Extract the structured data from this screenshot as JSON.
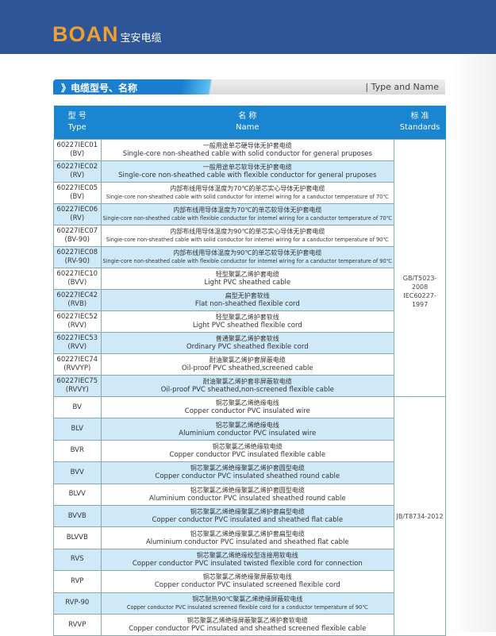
{
  "header": {
    "logo_latin": "BOAN",
    "logo_cn": "宝安电缆",
    "brand_color": "#2d5597"
  },
  "section": {
    "title_cn": "》电缆型号、名称",
    "title_en": "| Type and Name"
  },
  "table": {
    "headers": [
      {
        "cn": "型 号",
        "en": "Type"
      },
      {
        "cn": "名 称",
        "en": "Name"
      },
      {
        "cn": "标 准",
        "en": "Standards"
      }
    ],
    "groups": [
      {
        "standard": [
          "GB/T5023-2008",
          "IEC60227-1997"
        ],
        "rows": [
          {
            "type": [
              "60227IEC01",
              "(BV)"
            ],
            "cn": "一般用途单芯硬导体无护套电缆",
            "en": "Single-core non-sheathed cable with solid conductor for general pruposes"
          },
          {
            "type": [
              "60227IEC02",
              "(RV)"
            ],
            "cn": "一般用途单芯软导体无护套电缆",
            "en": "Single-core non-sheathed cable with flexible  conductor for general pruposes"
          },
          {
            "type": [
              "60227IEC05",
              "(BV)"
            ],
            "cn": "内部布线用导体温度为70℃的单芯实心导体无护套电缆",
            "en": "Singie-core non-sheathed cable with solid conductor for intemel wiring for a canductor temperature of 70℃"
          },
          {
            "type": [
              "60227IEC06",
              "(RV)"
            ],
            "cn": "内部布线用导体温度为70℃的单芯软导体无护套电缆",
            "en": "Singie-core non-sheathed cable with flexible conductor for intemel wiring for a canductor temperature of 70℃"
          },
          {
            "type": [
              "60227IEC07",
              "(BV-90)"
            ],
            "cn": "内部布线用导体温度为90℃的单芯实心导体无护套电缆",
            "en": "Singie-core non-sheathed cable with solid conductor for intemel wiring for a canductor temperature of 90℃"
          },
          {
            "type": [
              "60227IEC08",
              "(RV-90)"
            ],
            "cn": "内部布线用导体温度为90℃的单芯软导体无护套电缆",
            "en": "Singie-core non-sheathed cable with flexible conductor for intemel wiring for a canductor temperature of 90℃"
          },
          {
            "type": [
              "60227IEC10",
              "(BVV)"
            ],
            "cn": "轻型聚氯乙烯护套电缆",
            "en": "Light PVC sheathed cable"
          },
          {
            "type": [
              "60227IEC42",
              "(RVB)"
            ],
            "cn": "扁型无护套软线",
            "en": "Flat non-sheathed flexible cord"
          },
          {
            "type": [
              "60227IEC52",
              "(RVV)"
            ],
            "cn": "轻型聚氯乙烯护套软线",
            "en": "Light PVC sheathed flexible cord"
          },
          {
            "type": [
              "60227IEC53",
              "(RVV)"
            ],
            "cn": "普通聚氯乙烯护套软线",
            "en": "Ordinary PVC sheathed flexible cord"
          },
          {
            "type": [
              "60227IEC74",
              "(RVVYP)"
            ],
            "cn": "耐油聚氯乙烯护套屏蔽电缆",
            "en": "Oil-proof  PVC sheathed,screened cable"
          },
          {
            "type": [
              "60227IEC75",
              "(RVVY)"
            ],
            "cn": "耐油聚氯乙烯护套非屏蔽软电缆",
            "en": "Oil-proof  PVC sheathed,non-screened flexible cable"
          }
        ]
      },
      {
        "standard": [
          "JB/T8734-2012"
        ],
        "rows": [
          {
            "type": [
              "BV"
            ],
            "cn": "铜芯聚氯乙烯绝缘电线",
            "en": "Copper conductor  PVC insulated wire"
          },
          {
            "type": [
              "BLV"
            ],
            "cn": "铝芯聚氯乙烯绝缘电线",
            "en": "Aluminium conductor  PVC insulated wire"
          },
          {
            "type": [
              "BVR"
            ],
            "cn": "铜芯聚氯乙烯绝缘软电缆",
            "en": "Copper conductor  PVC insulated flexible cable"
          },
          {
            "type": [
              "BVV"
            ],
            "cn": "铜芯聚氯乙烯绝缘聚氯乙烯护套圆型电缆",
            "en": "Copper conductor  PVC insulated sheathed round cable"
          },
          {
            "type": [
              "BLVV"
            ],
            "cn": "铝芯聚氯乙烯绝缘聚氯乙烯护套圆型电缆",
            "en": "Aluminium conductor  PVC insulated sheathed round cable"
          },
          {
            "type": [
              "BVVB"
            ],
            "cn": "铜芯聚氯乙烯绝缘聚氯乙烯护套扁型电缆",
            "en": "Copper conductor  PVC insulated and sheathed flat cable"
          },
          {
            "type": [
              "BLVVB"
            ],
            "cn": "铝芯聚氯乙烯绝缘聚氯乙烯护套扁型电缆",
            "en": "Aluminium conductor  PVC insulated and sheathed flat cable"
          },
          {
            "type": [
              "RVS"
            ],
            "cn": "铜芯聚氯乙烯绝缘绞型连接用软电线",
            "en": "Copper conductor  PVC insulated twisted flexible cord for connection"
          },
          {
            "type": [
              "RVP"
            ],
            "cn": "铜芯聚氯乙烯绝缘聚屏蔽软电线",
            "en": "Copper conductor  PVC insulated screened flexible cord"
          },
          {
            "type": [
              "RVP-90"
            ],
            "cn": "铜芯耐热90℃聚氯乙烯绝缘屏蔽软电线",
            "en": "Copper conductor  PVC insulated screened flexible cord for a conductor temperature of 90℃"
          },
          {
            "type": [
              "RVVP"
            ],
            "cn": "铜芯聚氯乙烯绝缘屏蔽聚氯乙烯护套软电缆",
            "en": "Copper conductor  PVC insulated and sheathed screened flexible cable"
          }
        ]
      }
    ]
  }
}
